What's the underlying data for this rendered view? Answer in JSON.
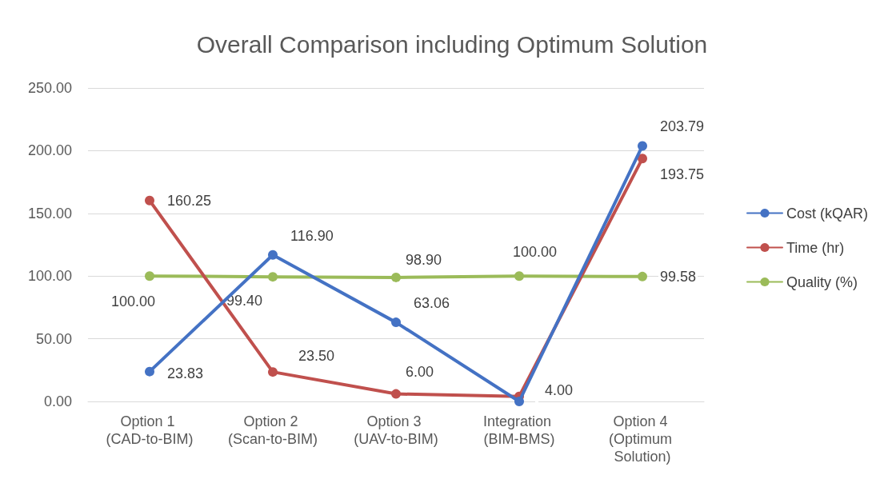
{
  "chart_data": {
    "type": "line",
    "title": "Overall Comparison including Optimum Solution",
    "categories": [
      "Option 1 (CAD-to-BIM)",
      "Option 2 (Scan-to-BIM)",
      "Option 3 (UAV-to-BIM)",
      "Integration (BIM-BMS)",
      "Option 4 (Optimum Solution)"
    ],
    "series": [
      {
        "name": "Cost (kQAR)",
        "color": "#4472c4",
        "values": [
          23.83,
          116.9,
          63.06,
          0,
          203.79
        ],
        "value_labels": [
          "23.83",
          "116.90",
          "63.06",
          null,
          "203.79"
        ]
      },
      {
        "name": "Time (hr)",
        "color": "#c0504d",
        "values": [
          160.25,
          23.5,
          6,
          4,
          193.75
        ],
        "value_labels": [
          "160.25",
          "23.50",
          "6.00",
          "4.00",
          "193.75"
        ]
      },
      {
        "name": "Quality (%)",
        "color": "#9bbb59",
        "values": [
          100,
          99.4,
          98.9,
          100,
          99.58
        ],
        "value_labels": [
          "100.00",
          "99.40",
          "98.90",
          "100.00",
          "99.58"
        ]
      }
    ],
    "ylim": [
      0,
      250
    ],
    "yticks": [
      {
        "value": 0,
        "label": "0.00"
      },
      {
        "value": 50,
        "label": "50.00"
      },
      {
        "value": 100,
        "label": "100.00"
      },
      {
        "value": 150,
        "label": "150.00"
      },
      {
        "value": 200,
        "label": "200.00"
      },
      {
        "value": 250,
        "label": "250.00"
      }
    ],
    "grid": "y",
    "legend": "right",
    "marker": "circle",
    "line_style": "solid"
  }
}
